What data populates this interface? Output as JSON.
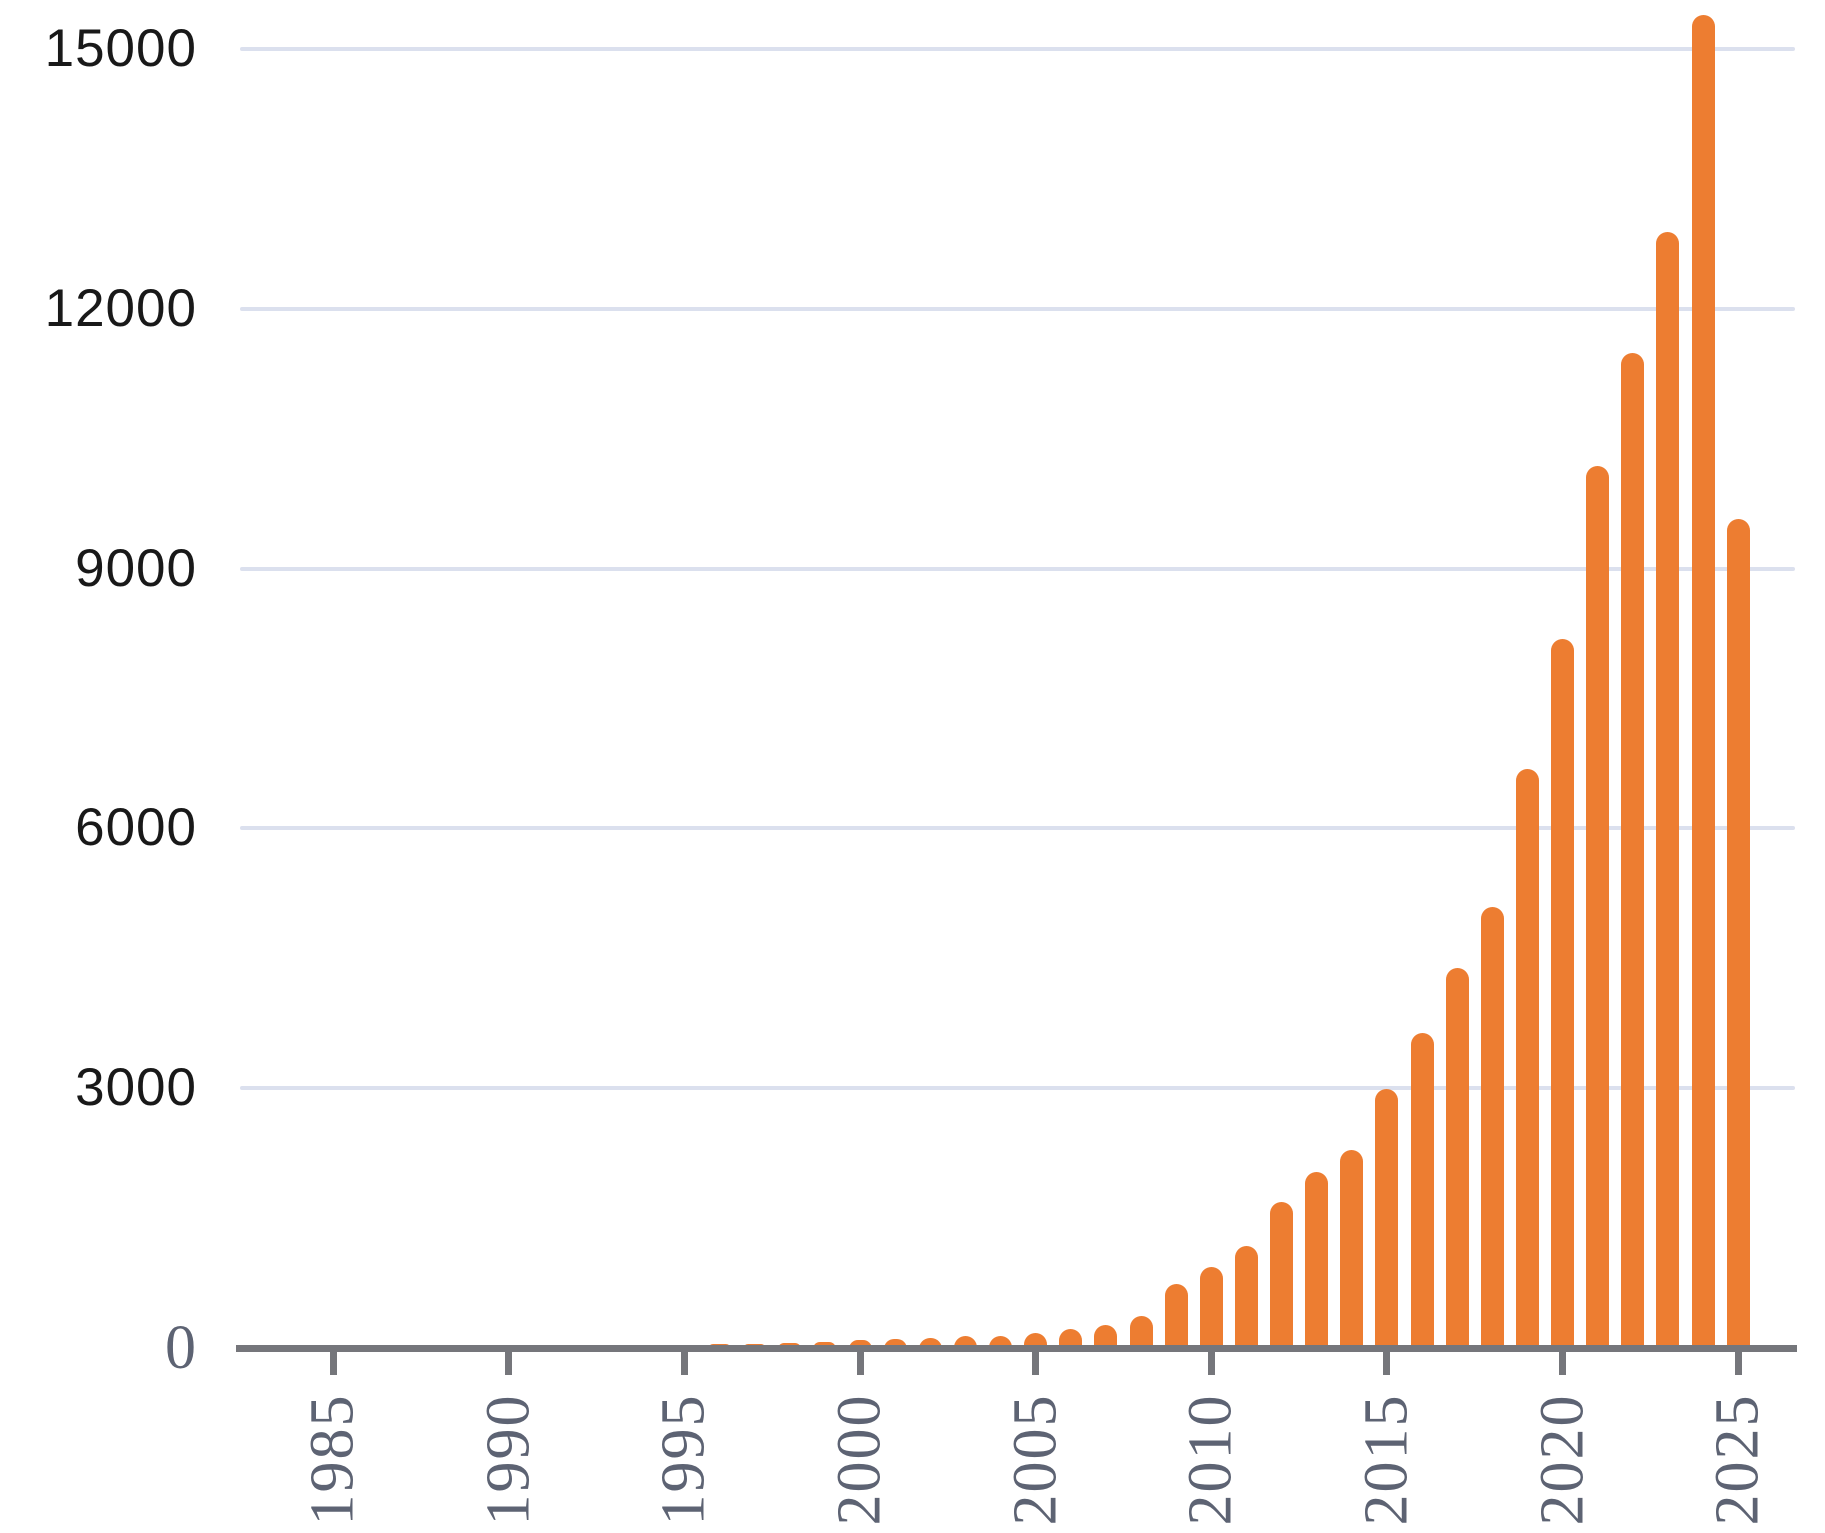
{
  "figure": {
    "title": "",
    "background_color": "#FFFFFF"
  },
  "colors": {
    "bar": "#ED7D31",
    "gridline": "#DBE0EE",
    "axis": "#75767B",
    "tick": "#75767B",
    "x_label": "#5D6373",
    "y_label": "#191919",
    "zero_label": "#5D6373"
  },
  "chart_data": {
    "type": "bar",
    "title": "",
    "xlabel": "",
    "ylabel": "",
    "legend": null,
    "grid": "horizontal",
    "ylim": [
      0,
      15500
    ],
    "x": [
      1983,
      1984,
      1985,
      1986,
      1987,
      1988,
      1989,
      1990,
      1991,
      1992,
      1993,
      1994,
      1995,
      1996,
      1997,
      1998,
      1999,
      2000,
      2001,
      2002,
      2003,
      2004,
      2005,
      2006,
      2007,
      2008,
      2009,
      2010,
      2011,
      2012,
      2013,
      2014,
      2015,
      2016,
      2017,
      2018,
      2019,
      2020,
      2021,
      2022,
      2023,
      2024,
      2025,
      2026
    ],
    "values": [
      2,
      3,
      4,
      5,
      6,
      8,
      10,
      13,
      16,
      22,
      30,
      38,
      45,
      55,
      62,
      70,
      78,
      105,
      115,
      130,
      150,
      155,
      185,
      230,
      280,
      380,
      750,
      950,
      1190,
      1700,
      2050,
      2300,
      3000,
      3650,
      4400,
      5100,
      6700,
      8200,
      10200,
      11500,
      12900,
      15400,
      9580,
      35
    ],
    "y_gridline_values": [
      15000,
      12000,
      9000,
      6000,
      3000
    ],
    "y_tick_labels": [
      "15000",
      "12000",
      "9000",
      "6000",
      "3000"
    ],
    "y_zero_label": "0",
    "x_tick_values": [
      1985,
      1990,
      1995,
      2000,
      2005,
      2010,
      2015,
      2020,
      2025
    ],
    "x_tick_labels": [
      "1985",
      "1990",
      "1995",
      "2000",
      "2005",
      "2010",
      "2015",
      "2020",
      "2025"
    ]
  }
}
